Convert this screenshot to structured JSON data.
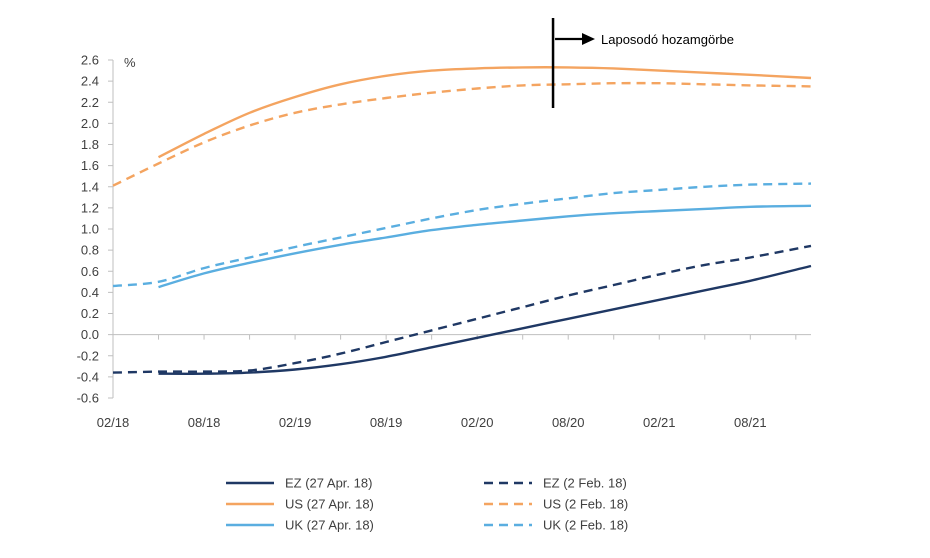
{
  "chart_data": {
    "type": "line",
    "ylabel": "%",
    "ylim": [
      -0.6,
      2.6
    ],
    "yticks": [
      -0.6,
      -0.4,
      -0.2,
      0.0,
      0.2,
      0.4,
      0.6,
      0.8,
      1.0,
      1.2,
      1.4,
      1.6,
      1.8,
      2.0,
      2.2,
      2.4,
      2.6
    ],
    "ytick_labels": [
      "-0.6",
      "-0.4",
      "-0.2",
      "0.0",
      "0.2",
      "0.4",
      "0.6",
      "0.8",
      "1.0",
      "1.2",
      "1.4",
      "1.6",
      "1.8",
      "2.0",
      "2.2",
      "2.4",
      "2.6"
    ],
    "x_unit": "months since 02/18",
    "xlim": [
      0,
      46
    ],
    "xticks": [
      0,
      6,
      12,
      18,
      24,
      30,
      36,
      42
    ],
    "xtick_labels": [
      "02/18",
      "08/18",
      "02/19",
      "08/19",
      "02/20",
      "08/20",
      "02/21",
      "08/21"
    ],
    "annotation": {
      "text": "Laposodó hozamgörbe",
      "x": 29
    },
    "legend_placement": "bottom",
    "series": [
      {
        "name": "EZ (27 Apr. 18)",
        "color": "#1f3864",
        "dash": false,
        "x": [
          3,
          6,
          9,
          12,
          15,
          18,
          21,
          24,
          27,
          30,
          33,
          36,
          39,
          42,
          46
        ],
        "y": [
          -0.37,
          -0.37,
          -0.36,
          -0.33,
          -0.28,
          -0.21,
          -0.12,
          -0.03,
          0.06,
          0.15,
          0.24,
          0.33,
          0.42,
          0.51,
          0.65
        ]
      },
      {
        "name": "EZ (2 Feb. 18)",
        "color": "#1f3864",
        "dash": true,
        "x": [
          0,
          3,
          6,
          9,
          12,
          15,
          18,
          21,
          24,
          27,
          30,
          33,
          36,
          39,
          42,
          46
        ],
        "y": [
          -0.36,
          -0.35,
          -0.35,
          -0.34,
          -0.27,
          -0.18,
          -0.07,
          0.04,
          0.15,
          0.26,
          0.37,
          0.47,
          0.57,
          0.66,
          0.73,
          0.84
        ]
      },
      {
        "name": "US (27 Apr. 18)",
        "color": "#f4a460",
        "dash": false,
        "x": [
          3,
          6,
          9,
          12,
          15,
          18,
          21,
          24,
          27,
          30,
          33,
          36,
          39,
          42,
          46
        ],
        "y": [
          1.68,
          1.9,
          2.1,
          2.25,
          2.37,
          2.45,
          2.5,
          2.52,
          2.53,
          2.53,
          2.52,
          2.5,
          2.48,
          2.46,
          2.43
        ]
      },
      {
        "name": "US (2 Feb. 18)",
        "color": "#f4a460",
        "dash": true,
        "x": [
          0,
          3,
          6,
          9,
          12,
          15,
          18,
          21,
          24,
          27,
          30,
          33,
          36,
          39,
          42,
          46
        ],
        "y": [
          1.41,
          1.62,
          1.82,
          1.98,
          2.1,
          2.18,
          2.24,
          2.29,
          2.33,
          2.36,
          2.37,
          2.38,
          2.38,
          2.37,
          2.36,
          2.35
        ]
      },
      {
        "name": "UK (27 Apr. 18)",
        "color": "#5aaee0",
        "dash": false,
        "x": [
          3,
          6,
          9,
          12,
          15,
          18,
          21,
          24,
          27,
          30,
          33,
          36,
          39,
          42,
          46
        ],
        "y": [
          0.45,
          0.58,
          0.68,
          0.77,
          0.85,
          0.92,
          0.99,
          1.04,
          1.08,
          1.12,
          1.15,
          1.17,
          1.19,
          1.21,
          1.22
        ]
      },
      {
        "name": "UK (2 Feb. 18)",
        "color": "#5aaee0",
        "dash": true,
        "x": [
          0,
          3,
          6,
          9,
          12,
          15,
          18,
          21,
          24,
          27,
          30,
          33,
          36,
          39,
          42,
          46
        ],
        "y": [
          0.46,
          0.5,
          0.63,
          0.73,
          0.83,
          0.92,
          1.01,
          1.1,
          1.18,
          1.24,
          1.29,
          1.34,
          1.37,
          1.4,
          1.42,
          1.43
        ]
      }
    ]
  }
}
